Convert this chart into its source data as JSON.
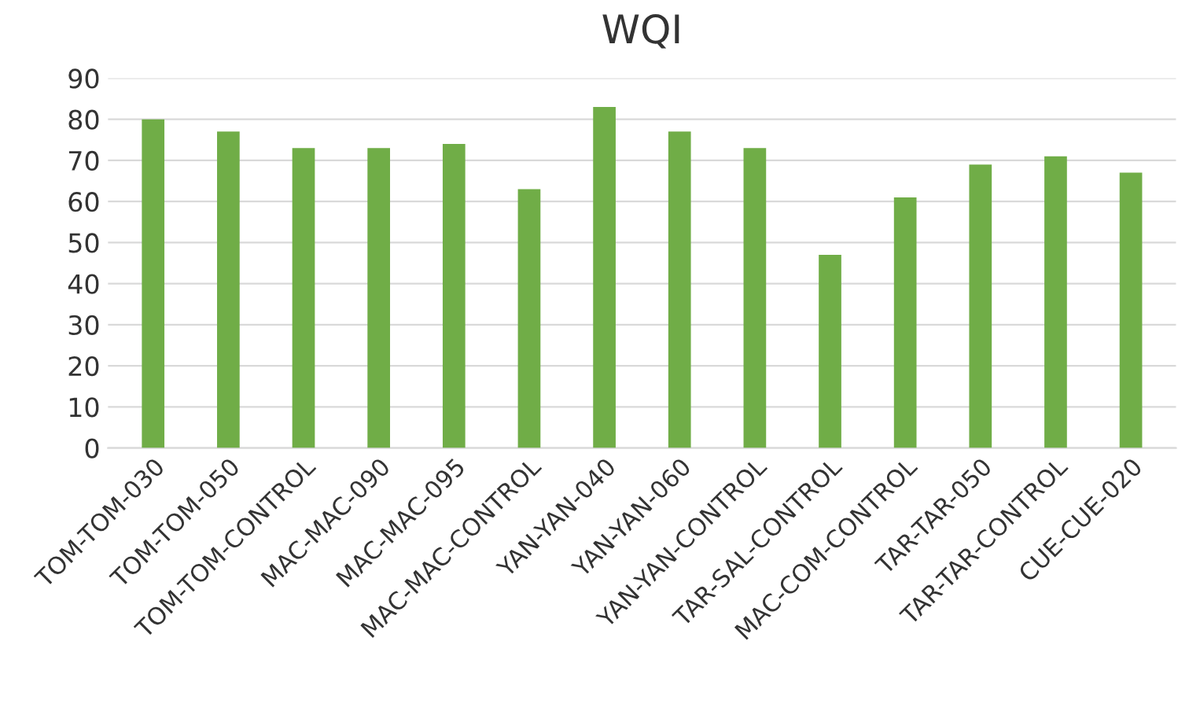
{
  "chart_data": {
    "type": "bar",
    "title": "WQI",
    "categories": [
      "TOM-TOM-030",
      "TOM-TOM-050",
      "TOM-TOM-CONTROL",
      "MAC-MAC-090",
      "MAC-MAC-095",
      "MAC-MAC-CONTROL",
      "YAN-YAN-040",
      "YAN-YAN-060",
      "YAN-YAN-CONTROL",
      "TAR-SAL-CONTROL",
      "MAC-COM-CONTROL",
      "TAR-TAR-050",
      "TAR-TAR-CONTROL",
      "CUE-CUE-020"
    ],
    "values": [
      80,
      77,
      73,
      73,
      74,
      63,
      83,
      77,
      73,
      47,
      61,
      69,
      71,
      67
    ],
    "color": "#70ad47",
    "ylim": [
      0,
      90
    ],
    "yticks": [
      0,
      10,
      20,
      30,
      40,
      50,
      60,
      70,
      80,
      90
    ],
    "grid": "y"
  }
}
